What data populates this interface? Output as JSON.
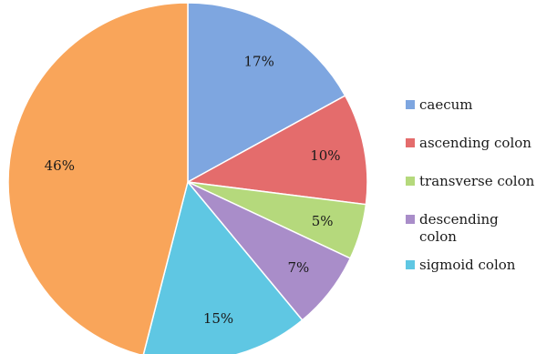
{
  "chart_data": {
    "type": "pie",
    "categories": [
      "caecum",
      "ascending colon",
      "transverse colon",
      "descending colon",
      "sigmoid colon",
      ""
    ],
    "values": [
      17,
      10,
      5,
      7,
      15,
      46
    ],
    "data_labels": [
      "17%",
      "10%",
      "5%",
      "7%",
      "15%",
      "46%"
    ],
    "legend": {
      "placement": "right",
      "entries": [
        {
          "label_lines": [
            "caecum"
          ]
        },
        {
          "label_lines": [
            "ascending colon"
          ]
        },
        {
          "label_lines": [
            "transverse colon"
          ]
        },
        {
          "label_lines": [
            "descending",
            "colon"
          ]
        },
        {
          "label_lines": [
            "sigmoid colon"
          ]
        }
      ]
    },
    "colors": [
      "#7ea6e0",
      "#e46c6c",
      "#b5d97c",
      "#a98dc9",
      "#5fc7e3",
      "#f9a55a"
    ],
    "title": "",
    "start_angle_deg": 0,
    "direction": "clockwise"
  }
}
